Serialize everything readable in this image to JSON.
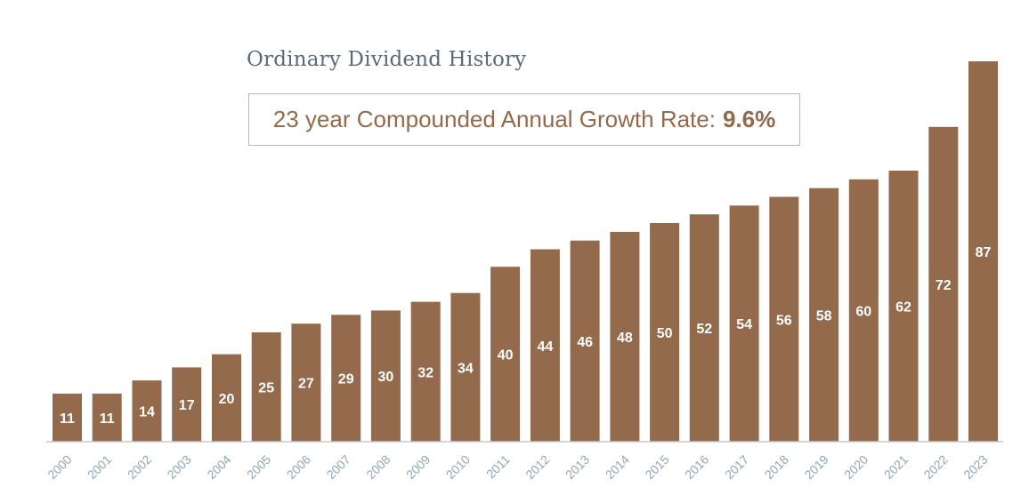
{
  "colors": {
    "bar": "#946a4c",
    "bar_label": "#ffffff",
    "axis": "#c9c9c9",
    "tick_label": "#8fa6b8",
    "title": "#5a6a78",
    "box_border": "#a9bfc5"
  },
  "chart_data": {
    "type": "bar",
    "title": "Ordinary Dividend History",
    "subtitle_label": "23 year Compounded Annual Growth Rate:",
    "subtitle_value": "9.6%",
    "xlabel": "",
    "ylabel": "",
    "ylim": [
      0,
      87
    ],
    "grid": false,
    "categories": [
      "2000",
      "2001",
      "2002",
      "2003",
      "2004",
      "2005",
      "2006",
      "2007",
      "2008",
      "2009",
      "2010",
      "2011",
      "2012",
      "2013",
      "2014",
      "2015",
      "2016",
      "2017",
      "2018",
      "2019",
      "2020",
      "2021",
      "2022",
      "2023"
    ],
    "values": [
      11,
      11,
      14,
      17,
      20,
      25,
      27,
      29,
      30,
      32,
      34,
      40,
      44,
      46,
      48,
      50,
      52,
      54,
      56,
      58,
      60,
      62,
      72,
      87
    ]
  }
}
